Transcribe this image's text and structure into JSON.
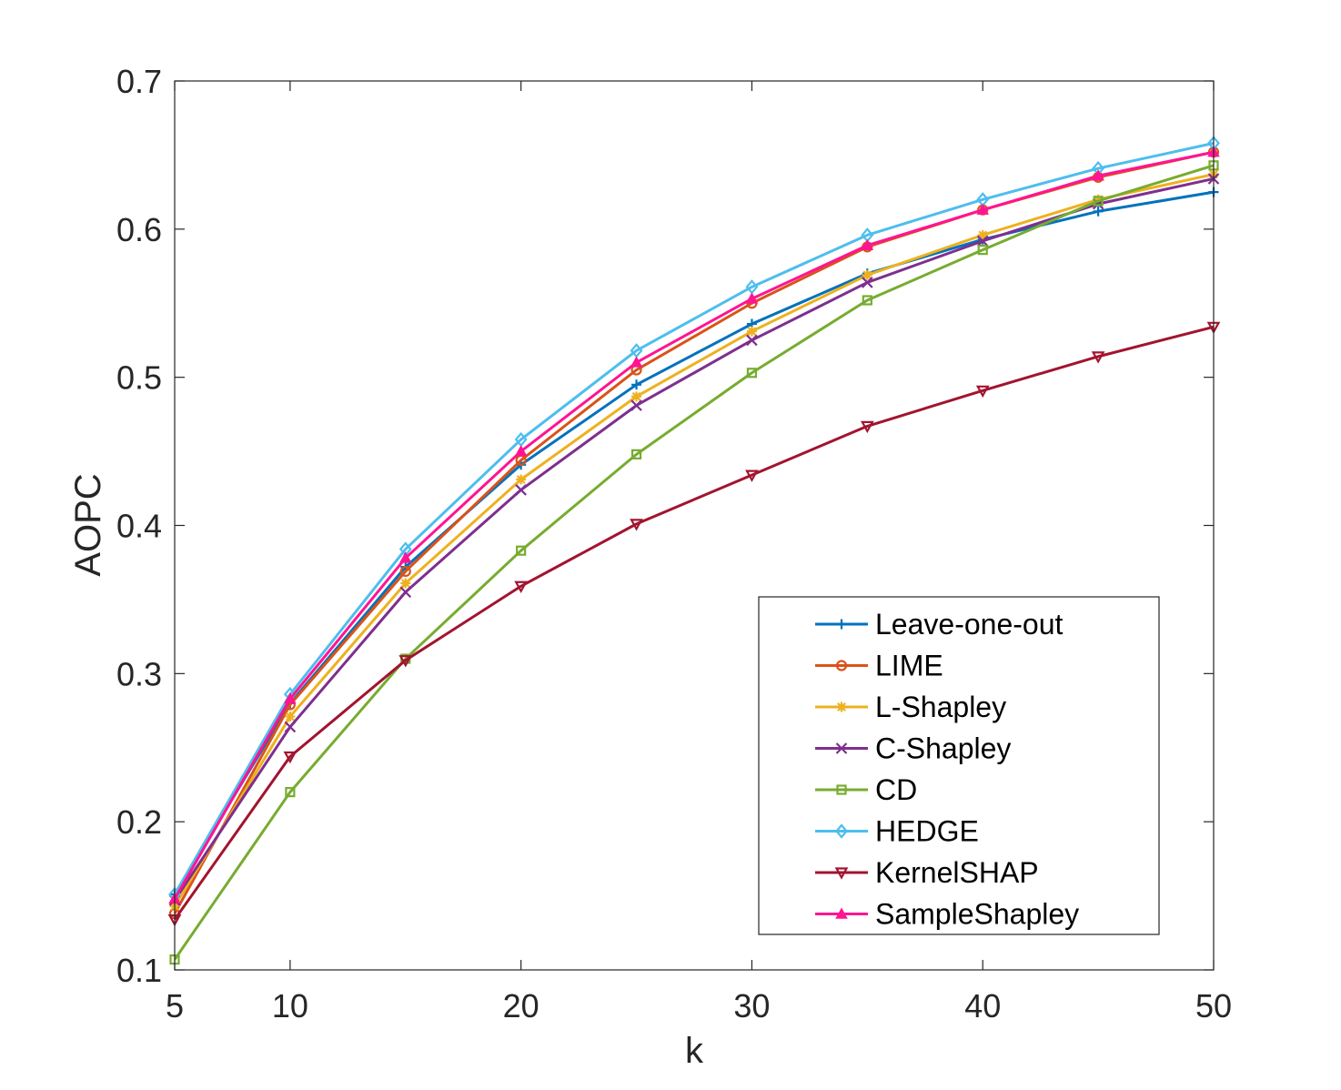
{
  "chart_data": {
    "type": "line",
    "title": "",
    "xlabel": "k",
    "ylabel": "AOPC",
    "x": [
      5,
      10,
      15,
      20,
      25,
      30,
      35,
      40,
      45,
      50
    ],
    "xlim": [
      5,
      50
    ],
    "ylim": [
      0.1,
      0.7
    ],
    "xticks": [
      5,
      10,
      20,
      30,
      40,
      50
    ],
    "xtick_labels": [
      "5",
      "10",
      "20",
      "30",
      "40",
      "50"
    ],
    "yticks": [
      0.1,
      0.2,
      0.3,
      0.4,
      0.5,
      0.6,
      0.7
    ],
    "ytick_labels": [
      "0.1",
      "0.2",
      "0.3",
      "0.4",
      "0.5",
      "0.6",
      "0.7"
    ],
    "grid": false,
    "legend_position": "lower-right",
    "series": [
      {
        "name": "Leave-one-out",
        "color": "#0072BD",
        "marker": "plus",
        "values": [
          0.151,
          0.28,
          0.372,
          0.441,
          0.495,
          0.536,
          0.57,
          0.593,
          0.612,
          0.625
        ]
      },
      {
        "name": "LIME",
        "color": "#D95319",
        "marker": "circle",
        "values": [
          0.138,
          0.279,
          0.369,
          0.444,
          0.505,
          0.55,
          0.588,
          0.613,
          0.635,
          0.652
        ]
      },
      {
        "name": "L-Shapley",
        "color": "#EDB120",
        "marker": "asterisk",
        "values": [
          0.143,
          0.271,
          0.361,
          0.431,
          0.487,
          0.531,
          0.569,
          0.596,
          0.62,
          0.637
        ]
      },
      {
        "name": "C-Shapley",
        "color": "#7E2F8E",
        "marker": "x",
        "values": [
          0.147,
          0.264,
          0.355,
          0.424,
          0.481,
          0.525,
          0.564,
          0.592,
          0.617,
          0.634
        ]
      },
      {
        "name": "CD",
        "color": "#77AC30",
        "marker": "square",
        "values": [
          0.107,
          0.22,
          0.31,
          0.383,
          0.448,
          0.503,
          0.552,
          0.586,
          0.619,
          0.643
        ]
      },
      {
        "name": "HEDGE",
        "color": "#4DBEEE",
        "marker": "diamond",
        "values": [
          0.151,
          0.286,
          0.384,
          0.458,
          0.518,
          0.561,
          0.596,
          0.62,
          0.641,
          0.658
        ]
      },
      {
        "name": "KernelSHAP",
        "color": "#A2142F",
        "marker": "triangle-down",
        "values": [
          0.134,
          0.244,
          0.309,
          0.359,
          0.401,
          0.434,
          0.467,
          0.491,
          0.514,
          0.534
        ]
      },
      {
        "name": "SampleShapley",
        "color": "#FF1493",
        "marker": "triangle-up",
        "values": [
          0.148,
          0.283,
          0.378,
          0.45,
          0.51,
          0.553,
          0.589,
          0.613,
          0.636,
          0.652
        ]
      }
    ]
  }
}
